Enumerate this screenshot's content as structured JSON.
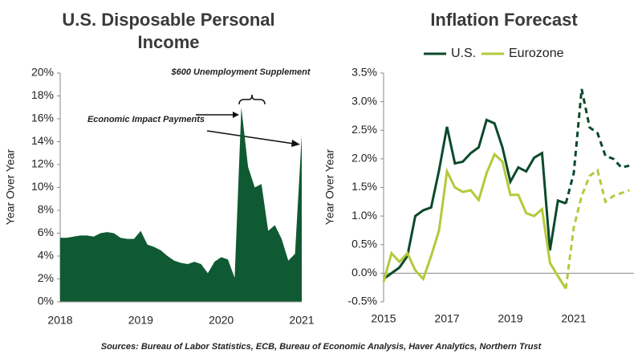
{
  "chart_data": [
    {
      "type": "area",
      "title": "U.S. Disposable Personal Income",
      "ylabel": "Year Over Year",
      "color": "#0f5a32",
      "categories": [
        "2018",
        null,
        null,
        null,
        null,
        null,
        null,
        null,
        null,
        null,
        null,
        null,
        "2019",
        null,
        null,
        null,
        null,
        null,
        null,
        null,
        null,
        null,
        null,
        null,
        "2020",
        null,
        null,
        null,
        null,
        null,
        null,
        null,
        null,
        null,
        null,
        null,
        "2021"
      ],
      "values": [
        5.6,
        5.6,
        5.7,
        5.8,
        5.8,
        5.7,
        6.0,
        6.1,
        6.0,
        5.6,
        5.5,
        5.5,
        6.2,
        5.0,
        4.8,
        4.5,
        4.0,
        3.6,
        3.4,
        3.3,
        3.5,
        3.3,
        2.5,
        3.5,
        3.9,
        3.7,
        2.1,
        17.0,
        11.8,
        10.0,
        10.3,
        6.2,
        6.7,
        5.5,
        3.6,
        4.2,
        14.6
      ],
      "ylim": [
        0,
        20
      ],
      "yticks": [
        {
          "value": 0,
          "label": "0%"
        },
        {
          "value": 2,
          "label": "2%"
        },
        {
          "value": 4,
          "label": "4%"
        },
        {
          "value": 6,
          "label": "6%"
        },
        {
          "value": 8,
          "label": "8%"
        },
        {
          "value": 10,
          "label": "10%"
        },
        {
          "value": 12,
          "label": "12%"
        },
        {
          "value": 14,
          "label": "14%"
        },
        {
          "value": 16,
          "label": "16%"
        },
        {
          "value": 18,
          "label": "18%"
        },
        {
          "value": 20,
          "label": "20%"
        }
      ],
      "annotations": [
        "$600 Unemployment Supplement",
        "Economic Impact Payments"
      ]
    },
    {
      "type": "line",
      "title": "Inflation Forecast",
      "ylabel": "Year Over Year",
      "legend": "top",
      "dashed_from": 2020.75,
      "x": [
        2015,
        2015.25,
        2015.5,
        2015.75,
        2016,
        2016.25,
        2016.5,
        2016.75,
        2017,
        2017.25,
        2017.5,
        2017.75,
        2018,
        2018.25,
        2018.5,
        2018.75,
        2019,
        2019.25,
        2019.5,
        2019.75,
        2020,
        2020.25,
        2020.5,
        2020.75,
        2021,
        2021.25,
        2021.5,
        2021.75,
        2022,
        2022.25,
        2022.5,
        2022.75
      ],
      "series": [
        {
          "name": "U.S.",
          "color": "#0b4a2b",
          "values": [
            -0.1,
            0.0,
            0.1,
            0.3,
            1.0,
            1.1,
            1.15,
            1.8,
            2.56,
            1.92,
            1.95,
            2.1,
            2.2,
            2.68,
            2.62,
            2.2,
            1.6,
            1.85,
            1.78,
            2.02,
            2.1,
            0.4,
            1.27,
            1.22,
            1.75,
            3.22,
            2.55,
            2.45,
            2.05,
            2.0,
            1.85,
            1.88
          ]
        },
        {
          "name": "Eurozone",
          "color": "#b5c93c",
          "values": [
            -0.15,
            0.35,
            0.2,
            0.35,
            0.05,
            -0.1,
            0.3,
            0.75,
            1.78,
            1.5,
            1.42,
            1.45,
            1.28,
            1.75,
            2.08,
            1.95,
            1.37,
            1.37,
            1.05,
            1.0,
            1.12,
            0.18,
            -0.05,
            -0.27,
            0.8,
            1.35,
            1.7,
            1.8,
            1.25,
            1.35,
            1.4,
            1.45
          ]
        }
      ],
      "xlim": [
        2015,
        2022.9
      ],
      "xticks": [
        2015,
        2017,
        2019,
        2021
      ],
      "ylim": [
        -0.5,
        3.5
      ],
      "yticks": [
        {
          "value": -0.5,
          "label": "-0.5%"
        },
        {
          "value": 0,
          "label": "0.0%"
        },
        {
          "value": 0.5,
          "label": "0.5%"
        },
        {
          "value": 1,
          "label": "1.0%"
        },
        {
          "value": 1.5,
          "label": "1.5%"
        },
        {
          "value": 2,
          "label": "2.0%"
        },
        {
          "value": 2.5,
          "label": "2.5%"
        },
        {
          "value": 3,
          "label": "3.0%"
        },
        {
          "value": 3.5,
          "label": "3.5%"
        }
      ]
    }
  ],
  "source": "Sources: Bureau of Labor Statistics, ECB, Bureau of Economic Analysis, Haver Analytics, Northern Trust"
}
